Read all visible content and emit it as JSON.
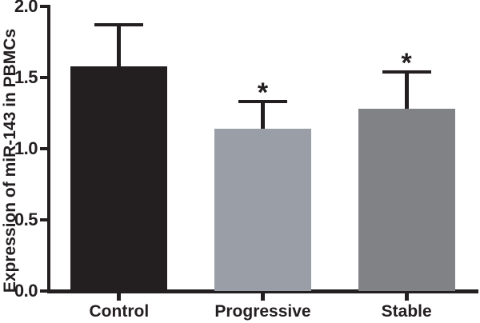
{
  "chart_data": {
    "type": "bar",
    "title": "",
    "xlabel": "",
    "ylabel": "Expression of miR-143 in PBMCs",
    "categories": [
      "Control",
      "Progressive",
      "Stable"
    ],
    "values": [
      1.58,
      1.14,
      1.28
    ],
    "error_up": [
      0.29,
      0.19,
      0.26
    ],
    "significance": [
      "",
      "*",
      "*"
    ],
    "bar_colors": [
      "#231F20",
      "#9A9EA7",
      "#808285"
    ],
    "axis_color": "#231F20",
    "background_color": "#FFFFFF",
    "ylim": [
      0,
      2.0
    ],
    "yticks": [
      "0.0",
      "0.5",
      "1.0",
      "1.5",
      "2.0"
    ],
    "grid": false,
    "legend": "none",
    "error_bar_style": "upper-only-with-cap"
  }
}
